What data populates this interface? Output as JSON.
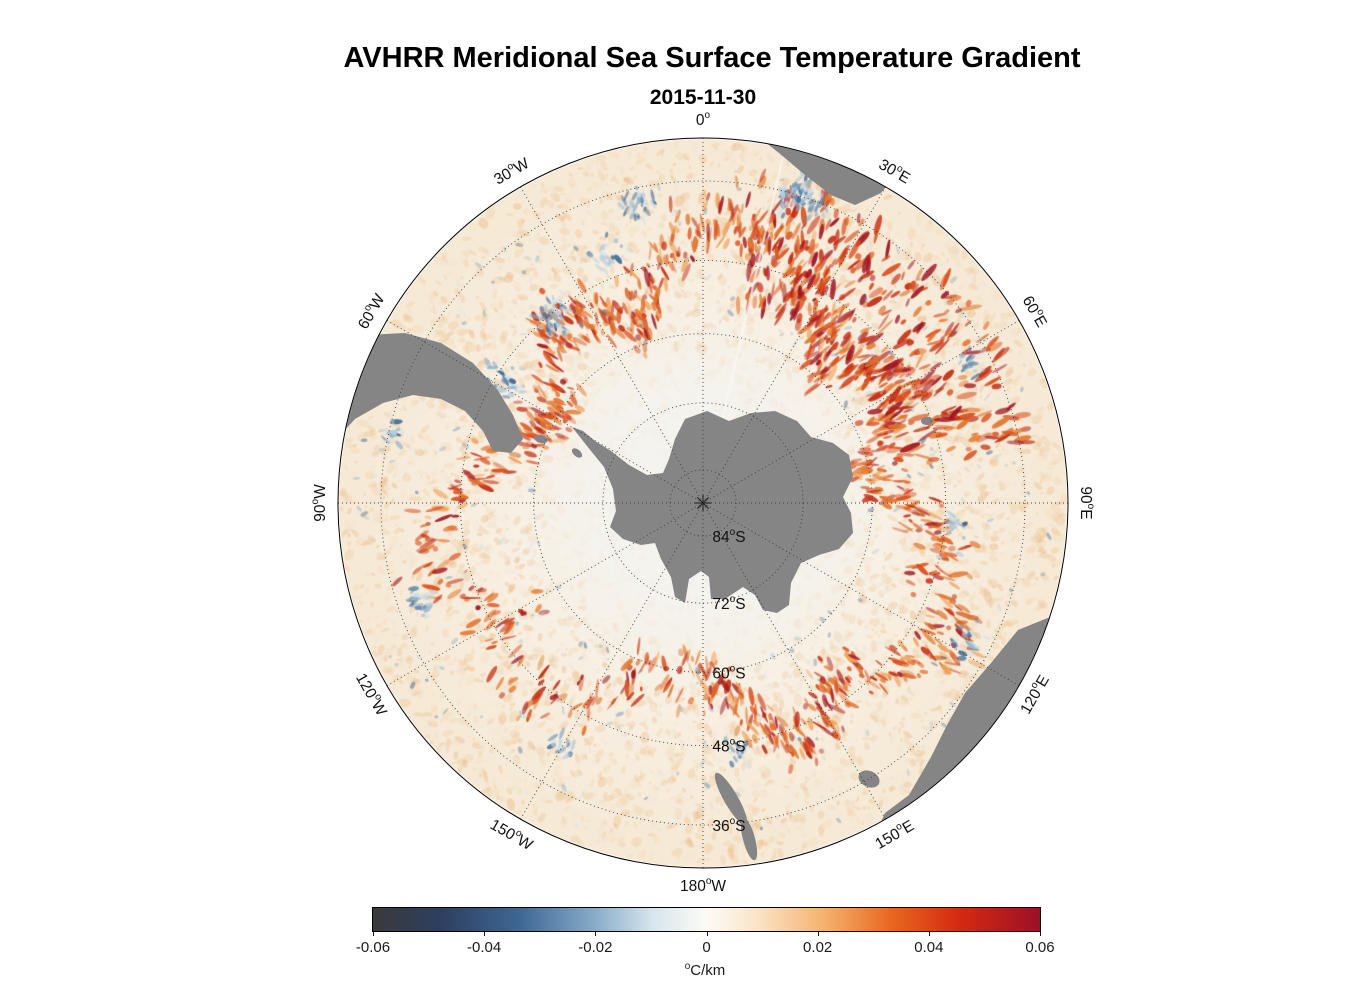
{
  "title": "AVHRR Meridional Sea Surface Temperature Gradient",
  "subtitle": "2015-11-30",
  "chart_data": {
    "type": "heatmap",
    "title": "AVHRR Meridional Sea Surface Temperature Gradient",
    "subtitle": "2015-11-30",
    "projection": "south polar stereographic",
    "variable": "meridional sea surface temperature gradient",
    "units": "°C/km",
    "date": "2015-11-30",
    "lat_outer_limit_deg": -30,
    "lat_rings_deg": [
      -84,
      -72,
      -60,
      -48,
      -36
    ],
    "lon_grid_step_deg": 30,
    "grid": "dotted",
    "legend_position": "bottom",
    "colorbar": {
      "min": -0.06,
      "max": 0.06,
      "ticks": [
        -0.06,
        -0.04,
        -0.02,
        0,
        0.02,
        0.04,
        0.06
      ],
      "tick_labels": [
        "-0.06",
        "-0.04",
        "-0.02",
        "0",
        "0.02",
        "0.04",
        "0.06"
      ],
      "label": "°C/km",
      "stops": [
        {
          "p": 0,
          "c": "#3a3a3c"
        },
        {
          "p": 0.1,
          "c": "#2e3f5e"
        },
        {
          "p": 0.22,
          "c": "#3f6795"
        },
        {
          "p": 0.33,
          "c": "#86abc8"
        },
        {
          "p": 0.42,
          "c": "#d8e6ee"
        },
        {
          "p": 0.5,
          "c": "#fdfbf6"
        },
        {
          "p": 0.58,
          "c": "#fbe3c4"
        },
        {
          "p": 0.68,
          "c": "#f5b06b"
        },
        {
          "p": 0.78,
          "c": "#e7661f"
        },
        {
          "p": 0.88,
          "c": "#d52a12"
        },
        {
          "p": 1,
          "c": "#9c1127"
        }
      ]
    },
    "value_summary": "Ocean field is mostly weak positive gradient (pale orange, ~0 to +0.02) with circumpolar frontal filaments reaching +0.04 to +0.06 (red), scattered negative patches (blue, -0.02 to -0.04), near-zero (white) values south of ~60S; Antarctica and other land masses are gray."
  },
  "map": {
    "land_color": "#858585",
    "graticule_color": "#3a3a3a",
    "rim_color": "#000000",
    "lon_labels": [
      {
        "text": "0°",
        "az": 0
      },
      {
        "text": "30°E",
        "az": 30
      },
      {
        "text": "60°E",
        "az": 60
      },
      {
        "text": "90°E",
        "az": 90
      },
      {
        "text": "120°E",
        "az": 120
      },
      {
        "text": "150°E",
        "az": 150
      },
      {
        "text": "180°W",
        "az": 180
      },
      {
        "text": "150°W",
        "az": 210
      },
      {
        "text": "120°W",
        "az": 240
      },
      {
        "text": "90°W",
        "az": 270
      },
      {
        "text": "60°W",
        "az": 300
      },
      {
        "text": "30°W",
        "az": 330
      }
    ],
    "lat_labels": [
      {
        "text": "84°S",
        "lat": 84
      },
      {
        "text": "72°S",
        "lat": 72
      },
      {
        "text": "60°S",
        "lat": 60
      },
      {
        "text": "48°S",
        "lat": 48
      },
      {
        "text": "36°S",
        "lat": 36
      }
    ],
    "field_palette": {
      "base_stops": [
        [
          0,
          "#f5f4f0"
        ],
        [
          0.35,
          "#f6f2ea"
        ],
        [
          0.6,
          "#f8efe1"
        ],
        [
          1,
          "#f6e9d5"
        ]
      ],
      "speckle_warm": [
        "#f2d8b8",
        "#eec795",
        "#e8b176",
        "#f4e2ca",
        "#edbf8a"
      ],
      "speckle_strong": [
        "#e2762f",
        "#da4f1d",
        "#c42d12",
        "#a01320",
        "#efa45c"
      ],
      "speckle_cool": [
        "#b6cede",
        "#8cb2cd",
        "#5c86ab",
        "#2e5c8b",
        "#d3e2ec"
      ],
      "seam": "rgba(252,250,246,0.7)"
    }
  }
}
